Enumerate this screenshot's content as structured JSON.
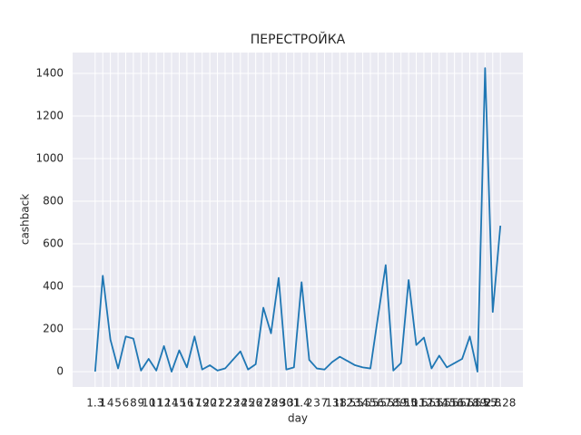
{
  "chart_data": {
    "type": "line",
    "title": "ПЕРЕСТРОЙКА",
    "x_label": "day",
    "y_label": "cashback",
    "categories": [
      "1.3",
      "1",
      "4",
      "5",
      "6",
      "8",
      "9",
      "10",
      "11",
      "12",
      "14",
      "15",
      "16",
      "17",
      "19",
      "20",
      "21",
      "22",
      "23",
      "24",
      "25",
      "26",
      "27",
      "28",
      "29",
      "30",
      "31",
      "1.4",
      "2",
      "3",
      "7",
      "13",
      "18",
      "1.5",
      "2.5",
      "3.5",
      "4.5",
      "5.5",
      "6.5",
      "7.5",
      "8.5",
      "9.5",
      "10.5",
      "11.5",
      "12.5",
      "13.5",
      "14.5",
      "15.5",
      "16.5",
      "17.5",
      "18.5",
      "19.5",
      "2.8",
      "27.28"
    ],
    "series": [
      {
        "name": "cashback",
        "color": "#1f77b4",
        "values": [
          0,
          450,
          150,
          15,
          165,
          155,
          5,
          60,
          5,
          120,
          0,
          100,
          20,
          165,
          10,
          30,
          5,
          15,
          55,
          95,
          10,
          35,
          300,
          180,
          440,
          10,
          20,
          420,
          55,
          15,
          10,
          45,
          70,
          50,
          30,
          20,
          15,
          260,
          500,
          5,
          40,
          430,
          125,
          160,
          15,
          75,
          20,
          40,
          60,
          165,
          0,
          1425,
          280,
          685
        ]
      }
    ],
    "ylim": [
      -72,
      1498
    ],
    "yticks": [
      0,
      200,
      400,
      600,
      800,
      1000,
      1200,
      1400
    ],
    "grid": true
  }
}
